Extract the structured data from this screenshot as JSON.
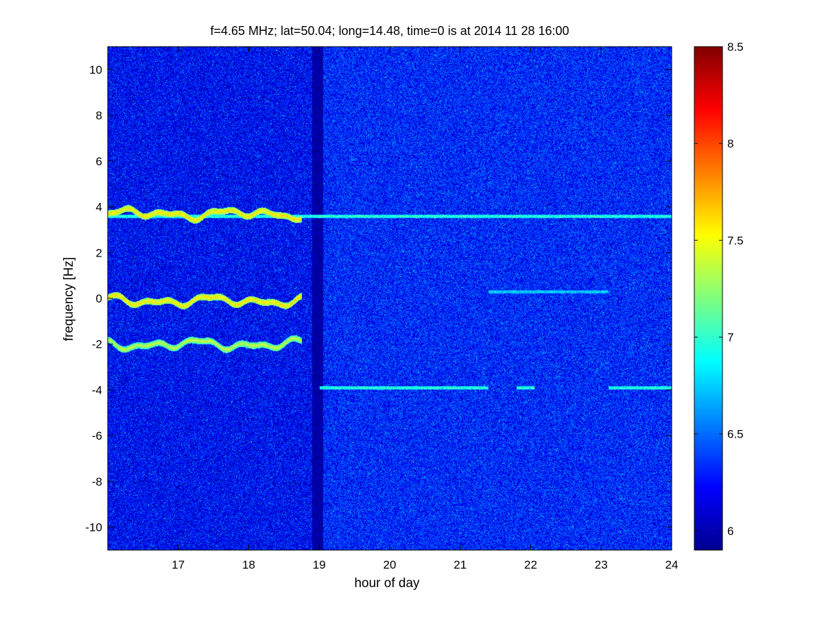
{
  "chart_data": {
    "type": "heatmap",
    "title": "f=4.65 MHz;  lat=50.04; long=14.48, time=0 is at 2014 11 28 16:00",
    "xlabel": "hour of day",
    "ylabel": "frequency [Hz]",
    "xlim": [
      16.0,
      24.0
    ],
    "ylim": [
      -11,
      11
    ],
    "x_ticks": [
      17,
      18,
      19,
      20,
      21,
      22,
      23,
      24
    ],
    "y_ticks": [
      10,
      8,
      6,
      4,
      2,
      0,
      -2,
      -4,
      -6,
      -8,
      -10
    ],
    "colormap": "jet",
    "colorbar": {
      "range": [
        5.9,
        8.5
      ],
      "ticks": [
        "8.5",
        "8",
        "7.5",
        "7",
        "6.5",
        "6"
      ]
    },
    "background_level": 6.3,
    "quiet_interval": {
      "x_start": 18.9,
      "x_end": 19.05,
      "level": 6.0
    },
    "features": [
      {
        "name": "trace-upper",
        "x_start": 16.0,
        "x_end": 18.75,
        "y_center": 3.7,
        "level": 7.6
      },
      {
        "name": "trace-middle",
        "x_start": 16.0,
        "x_end": 18.75,
        "y_center": -0.1,
        "level": 7.6
      },
      {
        "name": "trace-lower",
        "x_start": 16.0,
        "x_end": 18.75,
        "y_center": -2.0,
        "level": 7.4
      },
      {
        "name": "line-3.6",
        "x_start": 16.0,
        "x_end": 24.0,
        "y_center": 3.6,
        "level": 7.0
      },
      {
        "name": "line-minus-3.9",
        "x_start": 19.0,
        "x_end": 24.0,
        "y_center": -3.9,
        "level": 7.0
      },
      {
        "name": "line-0.3",
        "x_start": 21.4,
        "x_end": 23.1,
        "y_center": 0.3,
        "level": 6.8
      }
    ]
  }
}
